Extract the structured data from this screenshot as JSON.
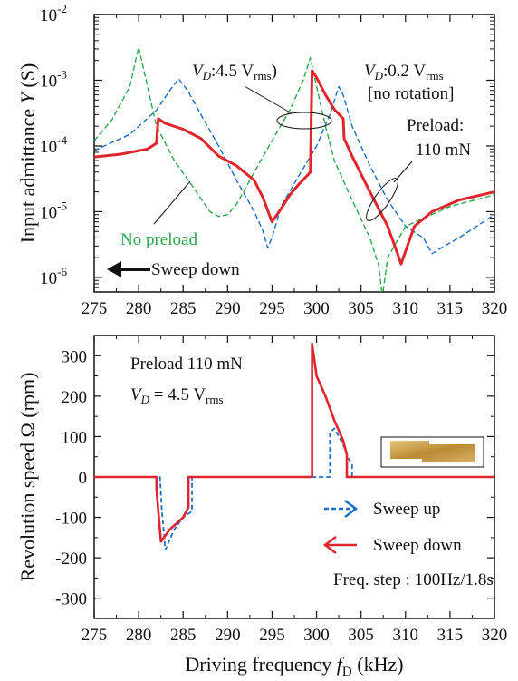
{
  "chart_data": [
    {
      "type": "line",
      "panel": "top",
      "ylabel": "Input admittance Y (S)",
      "y_scale": "log",
      "ylim": [
        6e-07,
        0.01
      ],
      "xlim": [
        275,
        320
      ],
      "x_ticks": [
        275,
        280,
        285,
        290,
        295,
        300,
        305,
        310,
        315,
        320
      ],
      "x_tick_labels": [
        "275",
        "280",
        "285",
        "290",
        "295",
        "300",
        "305",
        "310",
        "315",
        "320"
      ],
      "y_ticks": [
        {
          "value": 0.01,
          "base": "10",
          "exp": "-2"
        },
        {
          "value": 0.001,
          "base": "10",
          "exp": "-3"
        },
        {
          "value": 0.0001,
          "base": "10",
          "exp": "-4"
        },
        {
          "value": 1e-05,
          "base": "10",
          "exp": "-5"
        },
        {
          "value": 1e-06,
          "base": "10",
          "exp": "-6"
        }
      ],
      "series": [
        {
          "color": "#1a6fc4",
          "style": "dashed",
          "x": [
            275,
            279,
            282,
            283.5,
            284.5,
            285.5,
            287,
            289,
            291,
            293,
            294,
            294.5,
            295,
            296,
            298,
            300,
            301.5,
            302.5,
            303,
            304,
            306,
            308,
            310,
            312,
            313,
            314,
            316,
            318,
            320
          ],
          "y": [
            8.5e-05,
            0.00015,
            0.00035,
            0.0007,
            0.00105,
            0.0007,
            0.0003,
            0.0001,
            3e-05,
            1e-05,
            5e-06,
            2.8e-06,
            4e-06,
            1.2e-05,
            3.5e-05,
            0.0001,
            0.0003,
            0.0008,
            0.0006,
            0.0002,
            5e-05,
            1.5e-05,
            6e-06,
            4e-06,
            2.3e-06,
            2.8e-06,
            4e-06,
            6e-06,
            9e-06
          ]
        },
        {
          "color": "#2aa84a",
          "style": "dashed",
          "x": [
            275,
            277,
            279,
            280,
            281,
            282,
            284,
            286,
            288,
            289,
            290,
            291,
            293,
            295,
            297,
            298.5,
            299.3,
            300,
            301,
            302,
            304,
            306,
            307,
            307.4,
            308,
            310,
            315,
            320
          ],
          "y": [
            0.00012,
            0.00025,
            0.0008,
            0.0032,
            0.0008,
            0.0002,
            6e-05,
            2.5e-05,
            1e-05,
            8.5e-06,
            9e-06,
            1.3e-05,
            4e-05,
            0.00012,
            0.00035,
            0.001,
            0.0022,
            0.0008,
            0.0002,
            6e-05,
            1.5e-05,
            4e-06,
            1.5e-06,
            5e-07,
            2e-06,
            6e-06,
            1.2e-05,
            1.8e-05
          ]
        },
        {
          "color": "#e0262b",
          "style": "solid",
          "x": [
            275,
            278,
            281,
            282,
            282.2,
            283,
            285,
            287,
            289,
            291,
            293,
            294,
            295,
            296,
            297,
            298,
            299,
            299.3,
            299.5,
            300,
            301,
            302,
            303,
            303.1,
            304,
            306,
            308,
            309,
            309.5,
            310,
            311,
            313,
            316,
            320
          ],
          "y": [
            6.8e-05,
            7.5e-05,
            9e-05,
            0.00011,
            0.00026,
            0.00022,
            0.00018,
            0.00013,
            7e-05,
            5e-05,
            3e-05,
            1.6e-05,
            7e-06,
            1.1e-05,
            1.8e-05,
            2.6e-05,
            3.6e-05,
            4e-05,
            0.0014,
            0.0011,
            0.0006,
            0.00036,
            0.00026,
            0.00013,
            7e-05,
            2e-05,
            6e-06,
            2.5e-06,
            1.6e-06,
            2.5e-06,
            6e-06,
            1e-05,
            1.5e-05,
            2e-05
          ]
        }
      ],
      "annotations": {
        "vd_high": {
          "prefix": "V",
          "sub": "D",
          "rest": ":4.5 V",
          "rms": "rms",
          "close": ")"
        },
        "vd_low": {
          "prefix": "V",
          "sub": "D",
          "rest": ":0.2 V",
          "rms": "rms"
        },
        "no_rotation": "[no rotation]",
        "preload_line1": "Preload:",
        "preload_line2": "110 mN",
        "no_preload": "No preload",
        "sweep_down": "Sweep down"
      }
    },
    {
      "type": "line",
      "panel": "bottom",
      "xlabel": "Driving frequency fD (kHz)",
      "ylabel": "Revolution speed Ω (rpm)",
      "xlim": [
        275,
        320
      ],
      "ylim": [
        -350,
        350
      ],
      "x_ticks": [
        275,
        280,
        285,
        290,
        295,
        300,
        305,
        310,
        315,
        320
      ],
      "x_tick_labels": [
        "275",
        "280",
        "285",
        "290",
        "295",
        "300",
        "305",
        "310",
        "315",
        "320"
      ],
      "y_ticks": [
        300,
        200,
        100,
        0,
        -100,
        -200,
        -300
      ],
      "y_tick_labels": [
        "300",
        "200",
        "100",
        "0",
        "-100",
        "-200",
        "-300"
      ],
      "series": [
        {
          "name": "Sweep up",
          "color": "#1a6fc4",
          "style": "dashed",
          "x": [
            275,
            282.4,
            282.6,
            283,
            284,
            285,
            286,
            286,
            286.2,
            286.3,
            301.5,
            301.5,
            302,
            303,
            303.5,
            304,
            304,
            320
          ],
          "y": [
            0,
            0,
            -80,
            -180,
            -130,
            -100,
            -85,
            0,
            0,
            0,
            0,
            110,
            120,
            80,
            50,
            30,
            0,
            0
          ]
        },
        {
          "name": "Sweep down",
          "color": "#e0262b",
          "style": "solid",
          "x": [
            275,
            282,
            282,
            282.5,
            283.5,
            285,
            285.6,
            285.6,
            299.5,
            299.5,
            300,
            301,
            302,
            303,
            303.4,
            303.4,
            320
          ],
          "y": [
            0,
            0,
            -30,
            -160,
            -130,
            -100,
            -75,
            0,
            0,
            330,
            250,
            200,
            140,
            90,
            55,
            0,
            0
          ]
        }
      ],
      "annotations": {
        "preload": "Preload 110 mN",
        "vd_prefix": "V",
        "vd_sub": "D",
        "vd_rest": " = 4.5 V",
        "vd_rms": "rms",
        "legend_up": "Sweep up",
        "legend_down": "Sweep down",
        "freq_step": "Freq. step : 100Hz/1.8s"
      }
    }
  ],
  "labels": {
    "top_ylabel_main": "Input admittance ",
    "top_ylabel_var": "Y",
    "top_ylabel_unit": " (S)",
    "bottom_ylabel": "Revolution speed Ω (rpm)",
    "xlabel_main": "Driving frequency ",
    "xlabel_var": "f",
    "xlabel_sub": "D",
    "xlabel_unit": " (kHz)"
  },
  "colors": {
    "blue": "#1a6fc4",
    "green": "#2aa84a",
    "red": "#e0262b",
    "inset_gold": "#c9a24a"
  }
}
